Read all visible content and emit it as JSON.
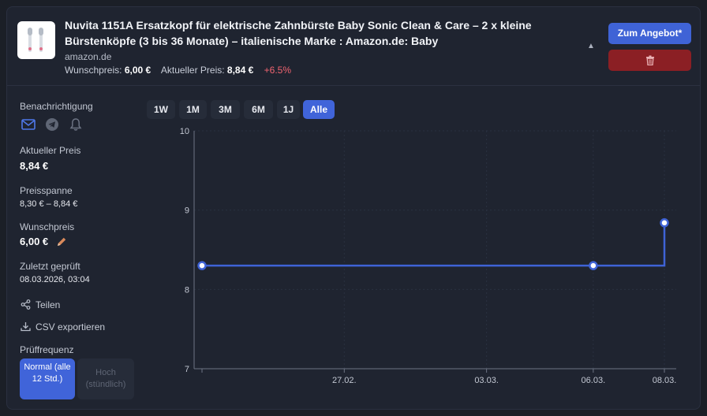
{
  "product": {
    "title": "Nuvita 1151A Ersatzkopf für elektrische Zahnbürste Baby Sonic Clean & Care – 2 x kleine Bürstenköpfe (3 bis 36 Monate) – italienische Marke : Amazon.de: Baby",
    "source": "amazon.de",
    "target_label": "Wunschpreis:",
    "target_value": "6,00 €",
    "current_label": "Aktueller Preis:",
    "current_value": "8,84 €",
    "change": "+6.5%"
  },
  "actions": {
    "offer_label": "Zum Angebot*",
    "delete_icon": "trash-icon",
    "collapse_icon": "caret-up-icon"
  },
  "sidebar": {
    "notify_label": "Benachrichtigung",
    "notify_icons": [
      "mail-icon",
      "telegram-icon",
      "bell-icon"
    ],
    "current_label": "Aktueller Preis",
    "current_value": "8,84 €",
    "range_label": "Preisspanne",
    "range_value": "8,30 € – 8,84 €",
    "target_label": "Wunschpreis",
    "target_value": "6,00 €",
    "checked_label": "Zuletzt geprüft",
    "checked_value": "08.03.2026, 03:04",
    "share_label": "Teilen",
    "csv_label": "CSV exportieren",
    "freq_label": "Prüffrequenz",
    "freq_normal": "Normal (alle 12 Std.)",
    "freq_high": "Hoch (stündlich)"
  },
  "range_tabs": [
    "1W",
    "1M",
    "3M",
    "6M",
    "1J",
    "Alle"
  ],
  "active_tab": "Alle",
  "colors": {
    "accent": "#4064d9",
    "line": "#3f63d6",
    "danger": "#8b1f24",
    "increase": "#f06470"
  },
  "chart_data": {
    "type": "line",
    "step": true,
    "y_ticks": [
      7,
      8,
      9,
      10
    ],
    "ylim": [
      7,
      10
    ],
    "x_ticks": [
      "27.02.",
      "03.03.",
      "06.03.",
      "08.03."
    ],
    "series": [
      {
        "points": [
          {
            "x": "23.02.",
            "y": 8.3
          },
          {
            "x": "06.03.",
            "y": 8.3
          },
          {
            "x": "08.03.",
            "y": 8.84
          }
        ]
      }
    ],
    "grid": true
  }
}
